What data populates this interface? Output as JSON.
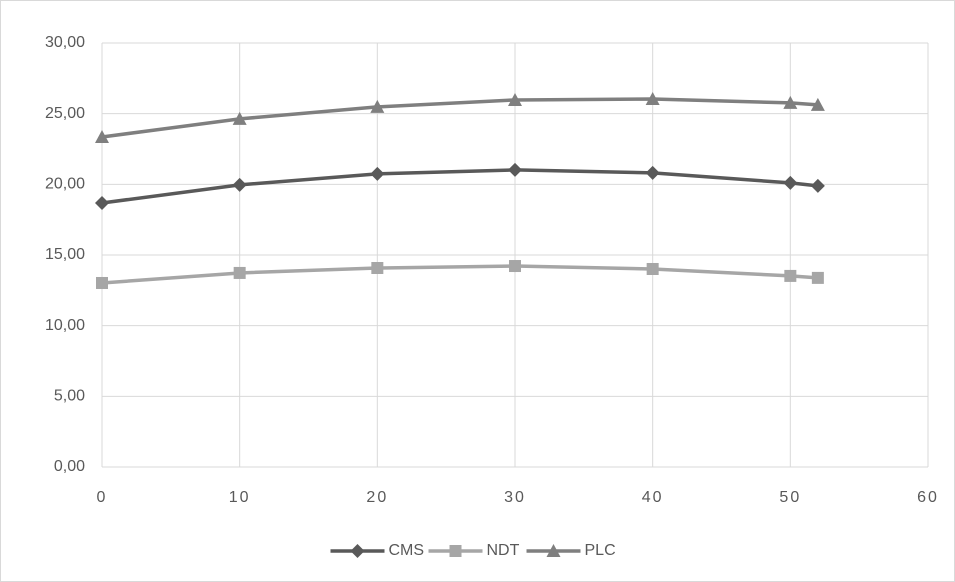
{
  "chart_data": {
    "type": "line",
    "x": [
      0,
      10,
      20,
      30,
      40,
      50,
      52
    ],
    "series": [
      {
        "name": "CMS",
        "color": "#595959",
        "marker": "diamond",
        "values": [
          18.68,
          19.96,
          20.74,
          21.02,
          20.81,
          20.1,
          19.89
        ]
      },
      {
        "name": "NDT",
        "color": "#a6a6a6",
        "marker": "square",
        "values": [
          13.02,
          13.73,
          14.08,
          14.22,
          14.01,
          13.52,
          13.38
        ]
      },
      {
        "name": "PLC",
        "color": "#7f7f7f",
        "marker": "triangle",
        "values": [
          23.35,
          24.63,
          25.48,
          25.97,
          26.04,
          25.76,
          25.62
        ]
      }
    ],
    "xlim": [
      0,
      60
    ],
    "xticks": [
      0,
      10,
      20,
      30,
      40,
      50,
      60
    ],
    "ylim": [
      0,
      30
    ],
    "yticks": [
      {
        "value": 0,
        "label": "0,00"
      },
      {
        "value": 5,
        "label": "5,00"
      },
      {
        "value": 10,
        "label": "10,00"
      },
      {
        "value": 15,
        "label": "15,00"
      },
      {
        "value": 20,
        "label": "20,00"
      },
      {
        "value": 25,
        "label": "25,00"
      },
      {
        "value": 30,
        "label": "30,00"
      }
    ],
    "grid": true,
    "legend": "bottom"
  }
}
